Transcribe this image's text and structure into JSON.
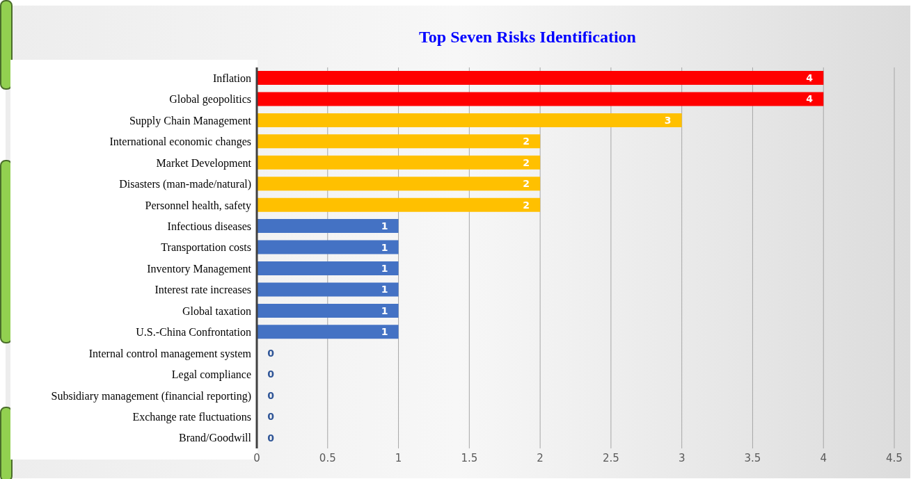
{
  "chart_data": {
    "type": "bar",
    "orientation": "horizontal",
    "title": "Top Seven Risks Identification",
    "categories": [
      "Inflation",
      "Global geopolitics",
      "Supply Chain Management",
      "International economic changes",
      "Market Development",
      "Disasters (man-made/natural)",
      "Personnel health, safety",
      "Infectious diseases",
      "Transportation costs",
      "Inventory Management",
      "Interest rate increases",
      "Global taxation",
      "U.S.-China Confrontation",
      "Internal control management system",
      "Legal compliance",
      "Subsidiary management (financial reporting)",
      "Exchange rate fluctuations",
      "Brand/Goodwill"
    ],
    "values": [
      4,
      4,
      3,
      2,
      2,
      2,
      2,
      1,
      1,
      1,
      1,
      1,
      1,
      0,
      0,
      0,
      0,
      0
    ],
    "colors": [
      "#ff0000",
      "#ff0000",
      "#ffc000",
      "#ffc000",
      "#ffc000",
      "#ffc000",
      "#ffc000",
      "#4472c4",
      "#4472c4",
      "#4472c4",
      "#4472c4",
      "#4472c4",
      "#4472c4",
      "#4472c4",
      "#4472c4",
      "#4472c4",
      "#4472c4",
      "#4472c4"
    ],
    "xlim": [
      0,
      4.5
    ],
    "xticks": [
      0,
      0.5,
      1,
      1.5,
      2,
      2.5,
      3,
      3.5,
      4,
      4.5
    ],
    "grid": "x",
    "data_labels": true
  }
}
